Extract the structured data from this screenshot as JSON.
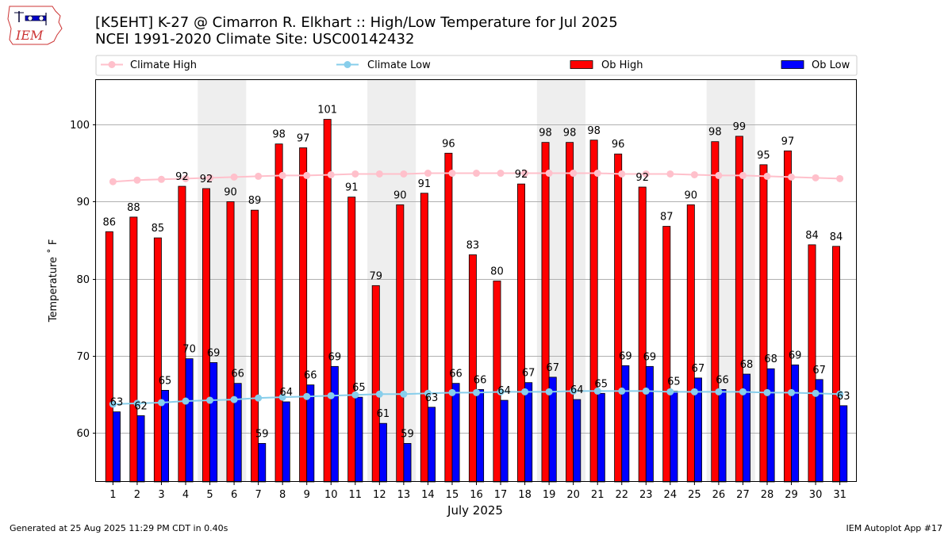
{
  "logo": {
    "text": "IEM"
  },
  "title": {
    "line1": "[K5EHT] K-27 @ Cimarron R. Elkhart :: High/Low Temperature for Jul 2025",
    "line2": "NCEI 1991-2020 Climate Site: USC00142432"
  },
  "footer": {
    "left": "Generated at 25 Aug 2025 11:29 PM CDT in 0.40s",
    "right": "IEM Autoplot App #17"
  },
  "colors": {
    "ob_high": "#ff0000",
    "ob_low": "#0000ff",
    "climate_high": "#ffc0cb",
    "climate_low": "#87ceeb",
    "weekend_shade": "#eeeeee"
  },
  "chart_data": {
    "type": "bar",
    "title": "[K5EHT] K-27 @ Cimarron R. Elkhart :: High/Low Temperature for Jul 2025",
    "xlabel": "July 2025",
    "ylabel": "Temperature °F",
    "ylabel_display": "Temperature ˚ F",
    "ylim": [
      53.6,
      105.8
    ],
    "yticks": [
      60,
      70,
      80,
      90,
      100
    ],
    "grid": "y",
    "legend_position": "top",
    "categories": [
      "1",
      "2",
      "3",
      "4",
      "5",
      "6",
      "7",
      "8",
      "9",
      "10",
      "11",
      "12",
      "13",
      "14",
      "15",
      "16",
      "17",
      "18",
      "19",
      "20",
      "21",
      "22",
      "23",
      "24",
      "25",
      "26",
      "27",
      "28",
      "29",
      "30",
      "31"
    ],
    "shaded_days": [
      [
        5,
        6
      ],
      [
        12,
        13
      ],
      [
        19,
        20
      ],
      [
        26,
        27
      ]
    ],
    "series": [
      {
        "name": "Ob High",
        "kind": "bar",
        "values": [
          86,
          88,
          85,
          92,
          92,
          90,
          89,
          98,
          97,
          101,
          91,
          79,
          90,
          91,
          96,
          83,
          80,
          92,
          98,
          98,
          98,
          96,
          92,
          87,
          90,
          98,
          99,
          95,
          97,
          84,
          84
        ],
        "plotted": [
          86.1,
          88.0,
          85.3,
          92.0,
          91.7,
          90.0,
          88.9,
          97.5,
          97.0,
          100.7,
          90.6,
          79.1,
          89.6,
          91.1,
          96.3,
          83.1,
          79.7,
          92.3,
          97.7,
          97.7,
          98.0,
          96.2,
          91.9,
          86.8,
          89.6,
          97.8,
          98.5,
          94.8,
          96.6,
          84.4,
          84.2
        ]
      },
      {
        "name": "Ob Low",
        "kind": "bar",
        "values": [
          63,
          62,
          65,
          70,
          69,
          66,
          59,
          64,
          66,
          69,
          65,
          61,
          59,
          63,
          66,
          66,
          64,
          67,
          67,
          64,
          65,
          69,
          69,
          65,
          67,
          66,
          68,
          68,
          69,
          67,
          63
        ],
        "plotted": [
          62.7,
          62.2,
          65.5,
          69.6,
          69.1,
          66.4,
          58.6,
          64.0,
          66.2,
          68.6,
          64.6,
          61.2,
          58.6,
          63.3,
          66.4,
          65.6,
          64.2,
          66.5,
          67.2,
          64.3,
          65.1,
          68.7,
          68.6,
          65.4,
          67.1,
          65.6,
          67.6,
          68.3,
          68.8,
          66.9,
          63.5
        ]
      },
      {
        "name": "Climate High",
        "kind": "line",
        "values": [
          92.6,
          92.8,
          92.9,
          93.0,
          93.1,
          93.2,
          93.3,
          93.4,
          93.4,
          93.5,
          93.6,
          93.6,
          93.6,
          93.7,
          93.7,
          93.7,
          93.7,
          93.7,
          93.7,
          93.7,
          93.7,
          93.6,
          93.6,
          93.6,
          93.5,
          93.4,
          93.4,
          93.3,
          93.2,
          93.1,
          93.0
        ]
      },
      {
        "name": "Climate Low",
        "kind": "line",
        "values": [
          63.7,
          63.8,
          63.9,
          64.1,
          64.2,
          64.3,
          64.5,
          64.6,
          64.7,
          64.8,
          64.9,
          65.0,
          65.0,
          65.1,
          65.2,
          65.2,
          65.3,
          65.3,
          65.3,
          65.4,
          65.4,
          65.4,
          65.4,
          65.3,
          65.3,
          65.3,
          65.3,
          65.2,
          65.2,
          65.1,
          65.0
        ]
      }
    ]
  }
}
